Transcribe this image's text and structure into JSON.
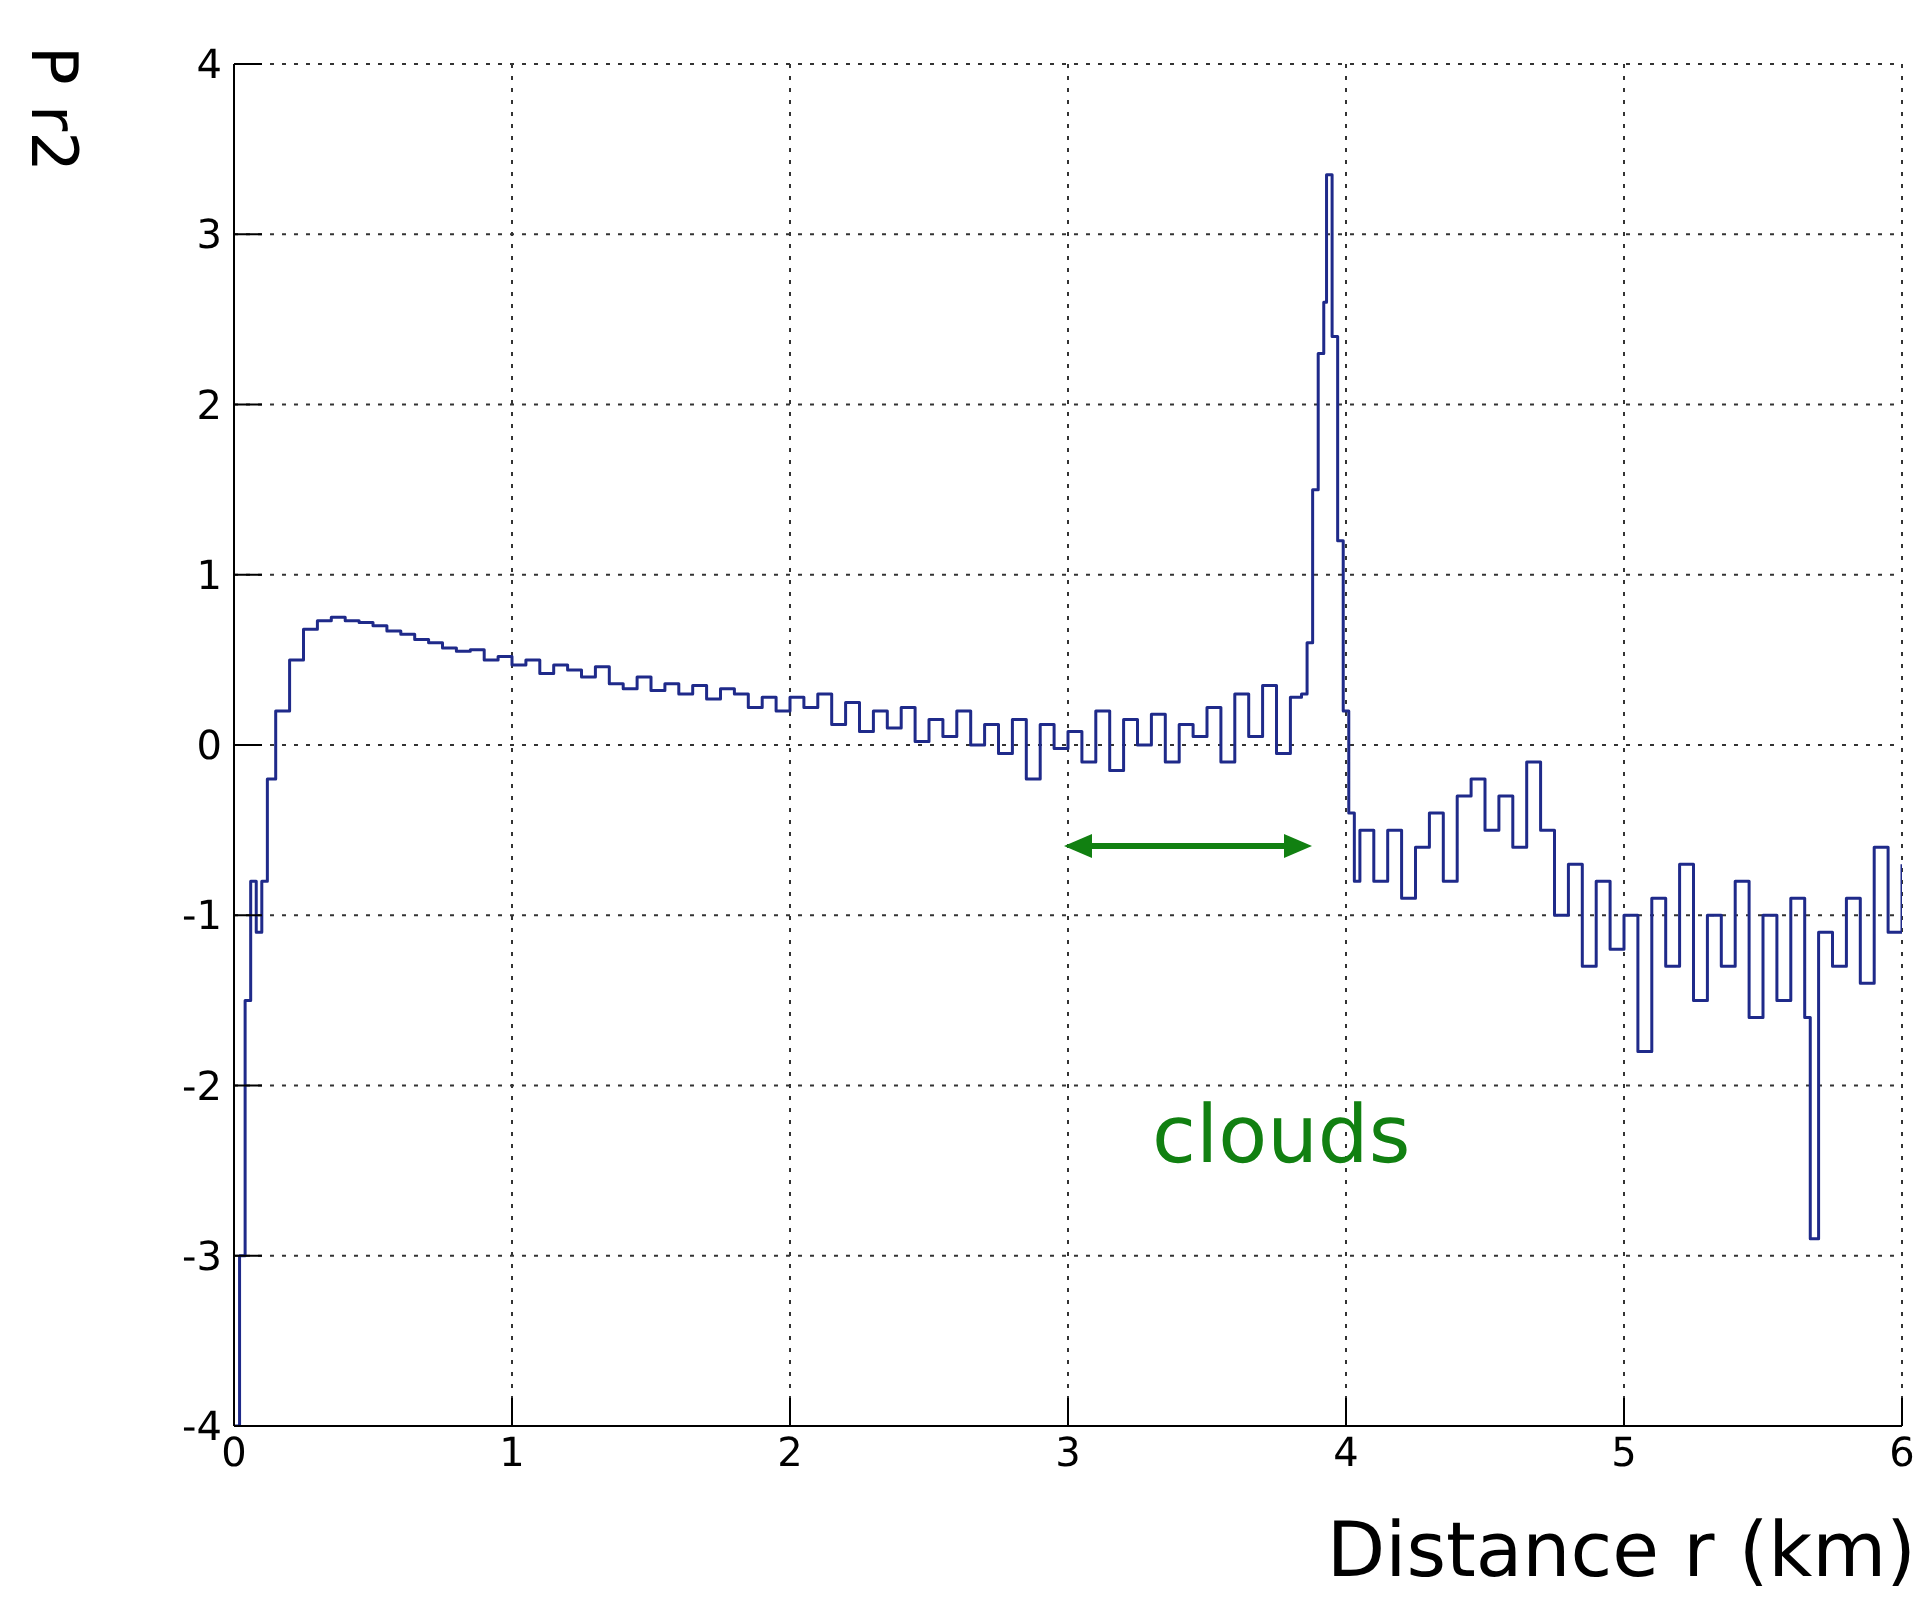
{
  "chart_data": {
    "type": "step",
    "xlabel": "Distance r (km)",
    "ylabel": "P r2",
    "xlim": [
      0,
      6
    ],
    "xticks": [
      0,
      1,
      2,
      3,
      4,
      5,
      6
    ],
    "ylim": [
      -4,
      4
    ],
    "yticks": [
      -4,
      -3,
      -2,
      -1,
      0,
      1,
      2,
      3,
      4
    ],
    "grid": true,
    "marker": "none",
    "line_style": "solid",
    "annotations": [
      "clouds"
    ],
    "x": [
      0,
      0.02,
      0.04,
      0.06,
      0.08,
      0.1,
      0.12,
      0.15,
      0.2,
      0.25,
      0.3,
      0.35,
      0.4,
      0.45,
      0.5,
      0.55,
      0.6,
      0.65,
      0.7,
      0.75,
      0.8,
      0.85,
      0.9,
      0.95,
      1,
      1.05,
      1.1,
      1.15,
      1.2,
      1.25,
      1.3,
      1.35,
      1.4,
      1.45,
      1.5,
      1.55,
      1.6,
      1.65,
      1.7,
      1.75,
      1.8,
      1.85,
      1.9,
      1.95,
      2,
      2.05,
      2.1,
      2.15,
      2.2,
      2.25,
      2.3,
      2.35,
      2.4,
      2.45,
      2.5,
      2.55,
      2.6,
      2.65,
      2.7,
      2.75,
      2.8,
      2.85,
      2.9,
      2.95,
      3,
      3.05,
      3.1,
      3.15,
      3.2,
      3.25,
      3.3,
      3.35,
      3.4,
      3.45,
      3.5,
      3.55,
      3.6,
      3.65,
      3.7,
      3.75,
      3.8,
      3.84,
      3.86,
      3.88,
      3.9,
      3.92,
      3.93,
      3.95,
      3.97,
      3.99,
      4.01,
      4.03,
      4.05,
      4.1,
      4.15,
      4.2,
      4.25,
      4.3,
      4.35,
      4.4,
      4.45,
      4.5,
      4.55,
      4.6,
      4.65,
      4.7,
      4.75,
      4.8,
      4.85,
      4.9,
      4.95,
      5,
      5.05,
      5.1,
      5.15,
      5.2,
      5.25,
      5.3,
      5.35,
      5.4,
      5.45,
      5.5,
      5.55,
      5.6,
      5.65,
      5.67,
      5.7,
      5.75,
      5.8,
      5.85,
      5.9,
      5.95,
      6
    ],
    "series": [
      {
        "color": "#1f2a8a",
        "values": [
          -4,
          -3,
          -1.5,
          -0.8,
          -1.1,
          -0.8,
          -0.2,
          0.2,
          0.5,
          0.68,
          0.73,
          0.75,
          0.73,
          0.72,
          0.7,
          0.67,
          0.65,
          0.62,
          0.6,
          0.57,
          0.55,
          0.56,
          0.5,
          0.52,
          0.47,
          0.5,
          0.42,
          0.47,
          0.44,
          0.4,
          0.46,
          0.36,
          0.33,
          0.4,
          0.32,
          0.36,
          0.3,
          0.35,
          0.27,
          0.33,
          0.3,
          0.22,
          0.28,
          0.2,
          0.28,
          0.22,
          0.3,
          0.12,
          0.25,
          0.08,
          0.2,
          0.1,
          0.22,
          0.02,
          0.15,
          0.05,
          0.2,
          0,
          0.12,
          -0.05,
          0.15,
          -0.2,
          0.12,
          -0.02,
          0.08,
          -0.1,
          0.2,
          -0.15,
          0.15,
          0,
          0.18,
          -0.1,
          0.12,
          0.05,
          0.22,
          -0.1,
          0.3,
          0.05,
          0.35,
          -0.05,
          0.28,
          0.3,
          0.6,
          1.5,
          2.3,
          2.6,
          3.35,
          2.4,
          1.2,
          0.2,
          -0.4,
          -0.8,
          -0.5,
          -0.8,
          -0.5,
          -0.9,
          -0.6,
          -0.4,
          -0.8,
          -0.3,
          -0.2,
          -0.5,
          -0.3,
          -0.6,
          -0.1,
          -0.5,
          -1,
          -0.7,
          -1.3,
          -0.8,
          -1.2,
          -1,
          -1.8,
          -0.9,
          -1.3,
          -0.7,
          -1.5,
          -1,
          -1.3,
          -0.8,
          -1.6,
          -1,
          -1.5,
          -0.9,
          -1.6,
          -2.9,
          -1.1,
          -1.3,
          -0.9,
          -1.4,
          -0.6,
          -1.1,
          -0.7
        ]
      }
    ]
  }
}
